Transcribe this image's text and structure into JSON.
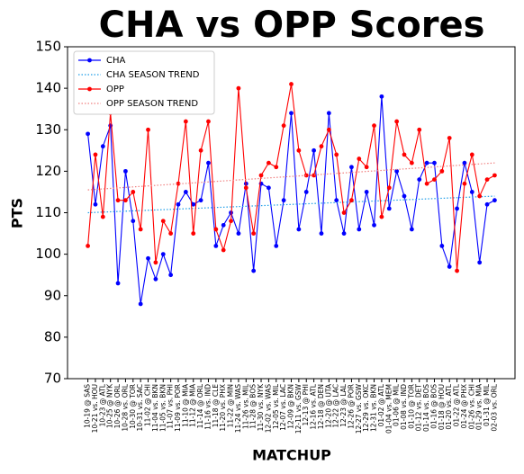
{
  "chart_data": {
    "type": "line",
    "title": "CHA vs OPP Scores",
    "xlabel": "MATCHUP",
    "ylabel": "PTS",
    "categories": [
      "10-19 @ SAS",
      "10-21 vs. HOU",
      "10-23 @ ATL",
      "10-25 @ NYK",
      "10-26 @ ORL",
      "10-28 vs. ORL",
      "10-30 @ TOR",
      "10-31 vs. SAC",
      "11-02 @ CHI",
      "11-04 vs. BKN",
      "11-05 vs. BKN",
      "11-07 vs. PHI",
      "11-09 vs. POR",
      "11-10 @ MIA",
      "11-12 @ MIA",
      "11-14 @ ORL",
      "11-16 vs. IND",
      "11-18 @ CLE",
      "11-20 vs. PHX",
      "11-22 @ MIN",
      "11-24 vs. WAS",
      "11-26 vs. MIL",
      "11-28 @ BOS",
      "11-30 vs. NYK",
      "12-02 vs. WAS",
      "12-05 vs. MIL",
      "12-07 vs. LAC",
      "12-09 @ BKN",
      "12-11 vs. GSW",
      "12-13 @ PHI",
      "12-16 vs. ATL",
      "12-18 @ DEN",
      "12-20 @ UTA",
      "12-22 @ LAC",
      "12-23 @ LAL",
      "12-26 @ POR",
      "12-27 vs. GSW",
      "12-29 vs. OKC",
      "12-31 vs. BKN",
      "01-02 @ ATL",
      "01-04 vs. MEM",
      "01-06 @ MIL",
      "01-08 vs. IND",
      "01-10 @ TOR",
      "01-12 vs. DET",
      "01-14 vs. BOS",
      "01-16 @ BOS",
      "01-18 @ HOU",
      "01-20 vs. ATL",
      "01-22 @ ATL",
      "01-24 @ PHX",
      "01-26 vs. CHI",
      "01-29 vs. MIA",
      "01-31 @ MIL",
      "02-03 vs. ORL"
    ],
    "series": [
      {
        "name": "CHA",
        "color": "#0000ff",
        "style": "solid",
        "marker": true,
        "values": [
          129,
          112,
          126,
          131,
          93,
          120,
          108,
          88,
          99,
          94,
          100,
          95,
          112,
          115,
          112,
          113,
          122,
          102,
          107,
          110,
          105,
          117,
          96,
          117,
          116,
          102,
          113,
          134,
          106,
          115,
          125,
          105,
          134,
          113,
          105,
          121,
          106,
          115,
          107,
          138,
          111,
          120,
          114,
          106,
          118,
          122,
          122,
          102,
          97,
          111,
          122,
          115,
          98,
          112,
          113
        ]
      },
      {
        "name": "CHA SEASON TREND",
        "color": "#1f9ee8",
        "style": "dotted",
        "marker": false,
        "x": [
          0,
          54
        ],
        "values": [
          110,
          114
        ]
      },
      {
        "name": "OPP",
        "color": "#ff0000",
        "style": "solid",
        "marker": true,
        "values": [
          102,
          124,
          109,
          134,
          113,
          113,
          115,
          106,
          130,
          98,
          108,
          105,
          117,
          132,
          105,
          125,
          132,
          106,
          101,
          108,
          140,
          116,
          105,
          119,
          122,
          121,
          131,
          141,
          125,
          119,
          119,
          126,
          130,
          124,
          110,
          113,
          123,
          121,
          131,
          109,
          116,
          132,
          124,
          122,
          130,
          117,
          118,
          120,
          128,
          96,
          117,
          124,
          114,
          118,
          119
        ]
      },
      {
        "name": "OPP SEASON TREND",
        "color": "#f08080",
        "style": "dotted",
        "marker": false,
        "x": [
          0,
          54
        ],
        "values": [
          115.5,
          122
        ]
      }
    ],
    "ylim": [
      70,
      150
    ],
    "yticks": [
      70,
      80,
      90,
      100,
      110,
      120,
      130,
      140,
      150
    ],
    "legend": "upper left",
    "grid": false
  }
}
